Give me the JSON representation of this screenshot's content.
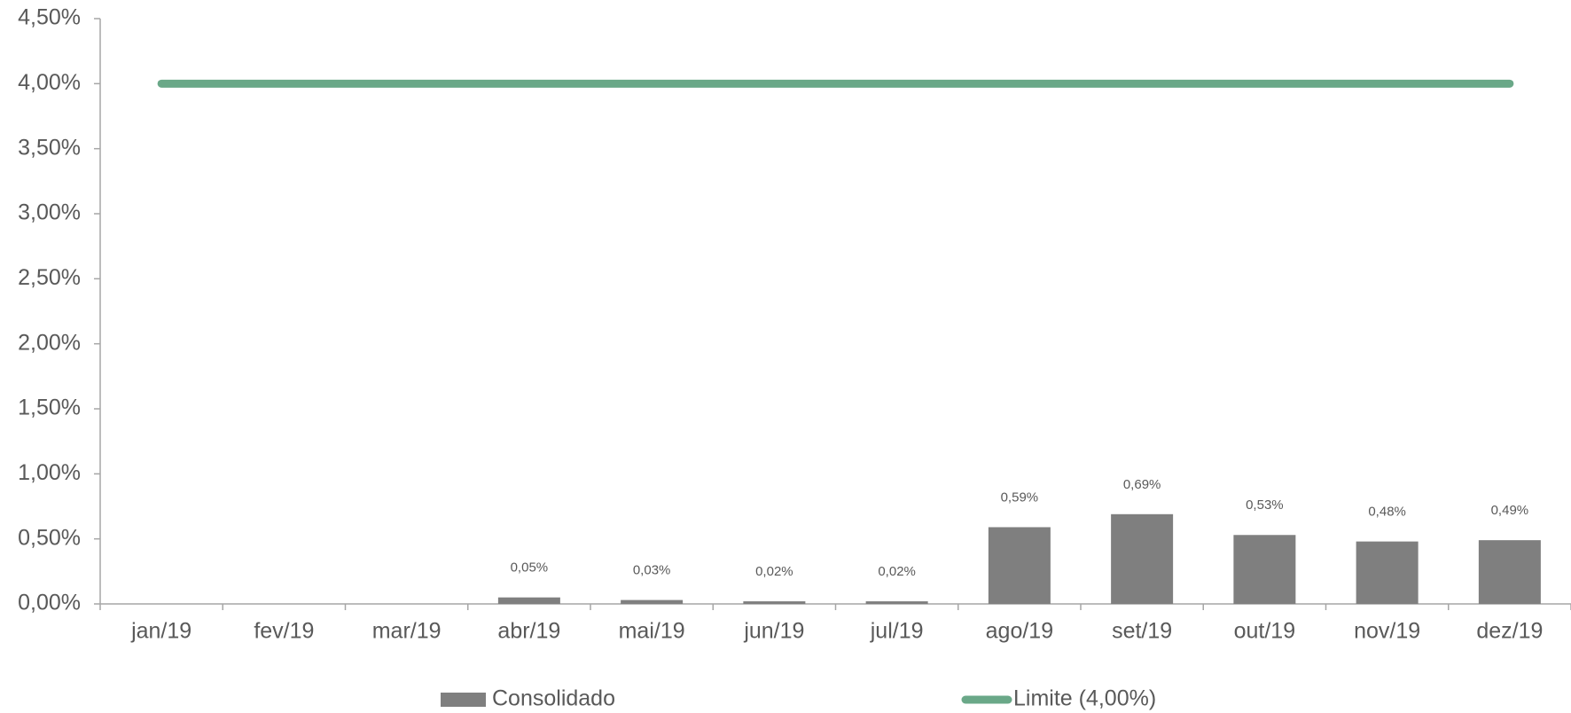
{
  "chart_data": {
    "type": "bar",
    "categories": [
      "jan/19",
      "fev/19",
      "mar/19",
      "abr/19",
      "mai/19",
      "jun/19",
      "jul/19",
      "ago/19",
      "set/19",
      "out/19",
      "nov/19",
      "dez/19"
    ],
    "series": [
      {
        "name": "Consolidado",
        "type": "bar",
        "color": "#7f7f7f",
        "values": [
          null,
          null,
          null,
          0.05,
          0.03,
          0.02,
          0.02,
          0.59,
          0.69,
          0.53,
          0.48,
          0.49
        ],
        "value_labels": [
          null,
          null,
          null,
          "0,05%",
          "0,03%",
          "0,02%",
          "0,02%",
          "0,59%",
          "0,69%",
          "0,53%",
          "0,48%",
          "0,49%"
        ]
      },
      {
        "name": "Limite (4,00%)",
        "type": "line",
        "color": "#6aa888",
        "values": [
          4,
          4,
          4,
          4,
          4,
          4,
          4,
          4,
          4,
          4,
          4,
          4
        ]
      }
    ],
    "ylim": [
      0,
      4.5
    ],
    "yticks": [
      {
        "value": 0,
        "label": "0,00%"
      },
      {
        "value": 0.5,
        "label": "0,50%"
      },
      {
        "value": 1,
        "label": "1,00%"
      },
      {
        "value": 1.5,
        "label": "1,50%"
      },
      {
        "value": 2,
        "label": "2,00%"
      },
      {
        "value": 2.5,
        "label": "2,50%"
      },
      {
        "value": 3,
        "label": "3,00%"
      },
      {
        "value": 3.5,
        "label": "3,50%"
      },
      {
        "value": 4,
        "label": "4,00%"
      },
      {
        "value": 4.5,
        "label": "4,50%"
      }
    ],
    "legend": "bottom"
  }
}
